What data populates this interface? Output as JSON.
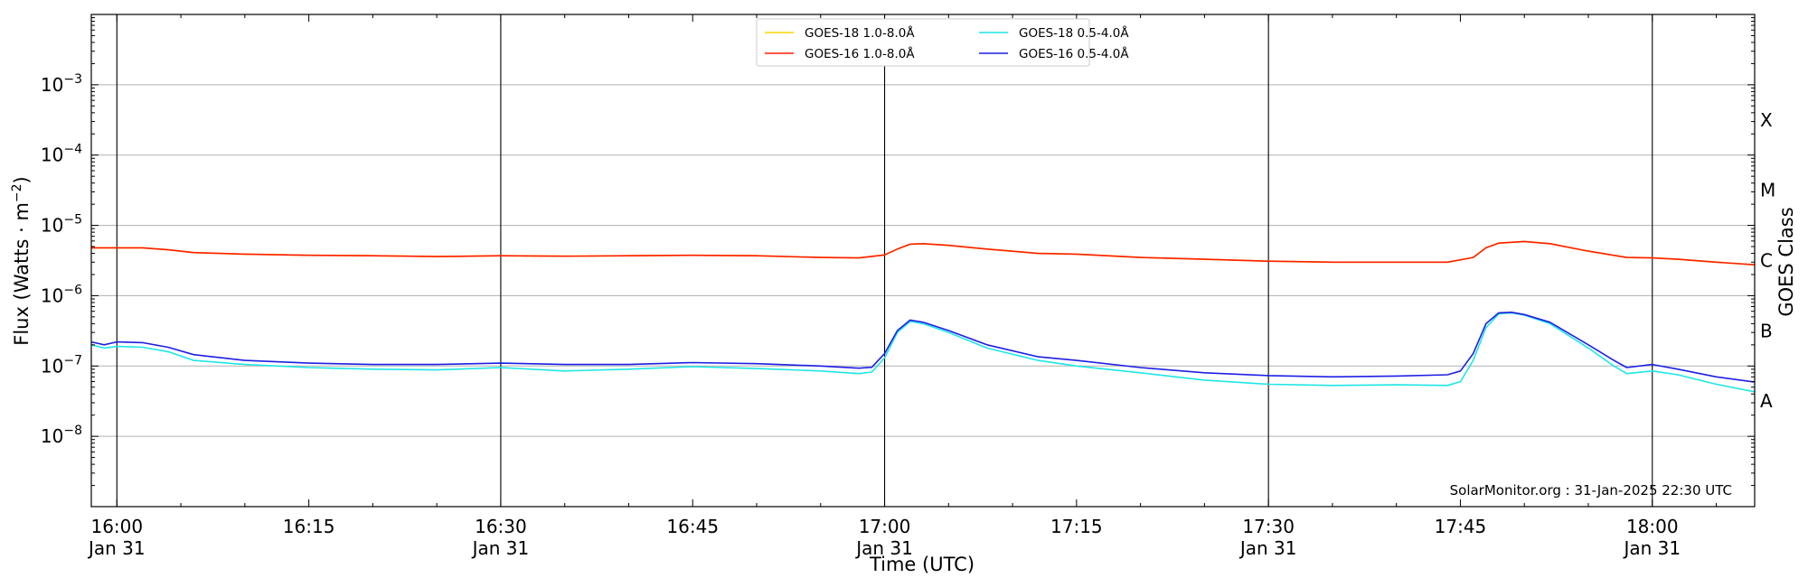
{
  "chart_data": {
    "type": "line",
    "xlabel": "Time (UTC)",
    "ylabel": "Flux (Watts · m",
    "ylabel_sup": "−2",
    "ylabel_close": ")",
    "right_label": "GOES Class",
    "credit": "SolarMonitor.org : 31-Jan-2025 22:30 UTC",
    "y_scale": "log",
    "ylim": [
      1e-09,
      0.01
    ],
    "xlim": [
      "15:58",
      "18:08"
    ],
    "grid": "horizontal",
    "legend_position": "top-center",
    "x_ticks": [
      {
        "t": "16:00",
        "line1": "16:00",
        "line2": "Jan 31",
        "major": true
      },
      {
        "t": "16:15",
        "line1": "16:15",
        "line2": "",
        "major": false
      },
      {
        "t": "16:30",
        "line1": "16:30",
        "line2": "Jan 31",
        "major": true
      },
      {
        "t": "16:45",
        "line1": "16:45",
        "line2": "",
        "major": false
      },
      {
        "t": "17:00",
        "line1": "17:00",
        "line2": "Jan 31",
        "major": true
      },
      {
        "t": "17:15",
        "line1": "17:15",
        "line2": "",
        "major": false
      },
      {
        "t": "17:30",
        "line1": "17:30",
        "line2": "Jan 31",
        "major": true
      },
      {
        "t": "17:45",
        "line1": "17:45",
        "line2": "",
        "major": false
      },
      {
        "t": "18:00",
        "line1": "18:00",
        "line2": "Jan 31",
        "major": true
      }
    ],
    "y_ticks": [
      {
        "exp": -8,
        "base": "10",
        "sup": "−8"
      },
      {
        "exp": -7,
        "base": "10",
        "sup": "−7"
      },
      {
        "exp": -6,
        "base": "10",
        "sup": "−6"
      },
      {
        "exp": -5,
        "base": "10",
        "sup": "−5"
      },
      {
        "exp": -4,
        "base": "10",
        "sup": "−4"
      },
      {
        "exp": -3,
        "base": "10",
        "sup": "−3"
      }
    ],
    "goes_classes": [
      {
        "label": "A",
        "exp": -7.5
      },
      {
        "label": "B",
        "exp": -6.5
      },
      {
        "label": "C",
        "exp": -5.5
      },
      {
        "label": "M",
        "exp": -4.5
      },
      {
        "label": "X",
        "exp": -3.5
      }
    ],
    "series": [
      {
        "name": "GOES-18 1.0-8.0Å",
        "color": "#ffd700",
        "points": [
          [
            "15:58",
            4.8e-06
          ],
          [
            "16:00",
            4.8e-06
          ],
          [
            "16:02",
            4.8e-06
          ],
          [
            "16:04",
            4.5e-06
          ],
          [
            "16:06",
            4.1e-06
          ],
          [
            "16:10",
            3.9e-06
          ],
          [
            "16:15",
            3.75e-06
          ],
          [
            "16:20",
            3.7e-06
          ],
          [
            "16:25",
            3.6e-06
          ],
          [
            "16:30",
            3.7e-06
          ],
          [
            "16:35",
            3.65e-06
          ],
          [
            "16:40",
            3.7e-06
          ],
          [
            "16:45",
            3.75e-06
          ],
          [
            "16:50",
            3.7e-06
          ],
          [
            "16:55",
            3.5e-06
          ],
          [
            "16:58",
            3.45e-06
          ],
          [
            "17:00",
            3.8e-06
          ],
          [
            "17:01",
            4.6e-06
          ],
          [
            "17:02",
            5.4e-06
          ],
          [
            "17:03",
            5.5e-06
          ],
          [
            "17:05",
            5.2e-06
          ],
          [
            "17:08",
            4.6e-06
          ],
          [
            "17:12",
            4e-06
          ],
          [
            "17:15",
            3.9e-06
          ],
          [
            "17:20",
            3.5e-06
          ],
          [
            "17:25",
            3.3e-06
          ],
          [
            "17:30",
            3.1e-06
          ],
          [
            "17:35",
            3e-06
          ],
          [
            "17:40",
            3e-06
          ],
          [
            "17:44",
            3e-06
          ],
          [
            "17:46",
            3.5e-06
          ],
          [
            "17:47",
            4.8e-06
          ],
          [
            "17:48",
            5.6e-06
          ],
          [
            "17:50",
            5.9e-06
          ],
          [
            "17:52",
            5.5e-06
          ],
          [
            "17:55",
            4.3e-06
          ],
          [
            "17:58",
            3.5e-06
          ],
          [
            "18:00",
            3.45e-06
          ],
          [
            "18:02",
            3.3e-06
          ],
          [
            "18:05",
            3e-06
          ],
          [
            "18:08",
            2.75e-06
          ]
        ]
      },
      {
        "name": "GOES-16 1.0-8.0Å",
        "color": "#ff1e00",
        "points": [
          [
            "15:58",
            4.8e-06
          ],
          [
            "16:00",
            4.8e-06
          ],
          [
            "16:02",
            4.8e-06
          ],
          [
            "16:04",
            4.5e-06
          ],
          [
            "16:06",
            4.1e-06
          ],
          [
            "16:10",
            3.9e-06
          ],
          [
            "16:15",
            3.75e-06
          ],
          [
            "16:20",
            3.7e-06
          ],
          [
            "16:25",
            3.6e-06
          ],
          [
            "16:30",
            3.7e-06
          ],
          [
            "16:35",
            3.65e-06
          ],
          [
            "16:40",
            3.7e-06
          ],
          [
            "16:45",
            3.75e-06
          ],
          [
            "16:50",
            3.7e-06
          ],
          [
            "16:55",
            3.5e-06
          ],
          [
            "16:58",
            3.45e-06
          ],
          [
            "17:00",
            3.8e-06
          ],
          [
            "17:01",
            4.6e-06
          ],
          [
            "17:02",
            5.4e-06
          ],
          [
            "17:03",
            5.5e-06
          ],
          [
            "17:05",
            5.2e-06
          ],
          [
            "17:08",
            4.6e-06
          ],
          [
            "17:12",
            4e-06
          ],
          [
            "17:15",
            3.9e-06
          ],
          [
            "17:20",
            3.5e-06
          ],
          [
            "17:25",
            3.3e-06
          ],
          [
            "17:30",
            3.1e-06
          ],
          [
            "17:35",
            3e-06
          ],
          [
            "17:40",
            3e-06
          ],
          [
            "17:44",
            3e-06
          ],
          [
            "17:46",
            3.5e-06
          ],
          [
            "17:47",
            4.8e-06
          ],
          [
            "17:48",
            5.6e-06
          ],
          [
            "17:50",
            5.9e-06
          ],
          [
            "17:52",
            5.5e-06
          ],
          [
            "17:55",
            4.3e-06
          ],
          [
            "17:58",
            3.5e-06
          ],
          [
            "18:00",
            3.45e-06
          ],
          [
            "18:02",
            3.3e-06
          ],
          [
            "18:05",
            3e-06
          ],
          [
            "18:08",
            2.75e-06
          ]
        ]
      },
      {
        "name": "GOES-18 0.5-4.0Å",
        "color": "#1ee6e6",
        "points": [
          [
            "15:58",
            2e-07
          ],
          [
            "15:59",
            1.8e-07
          ],
          [
            "16:00",
            1.9e-07
          ],
          [
            "16:02",
            1.85e-07
          ],
          [
            "16:04",
            1.6e-07
          ],
          [
            "16:06",
            1.2e-07
          ],
          [
            "16:10",
            1.05e-07
          ],
          [
            "16:15",
            9.5e-08
          ],
          [
            "16:20",
            9e-08
          ],
          [
            "16:25",
            8.8e-08
          ],
          [
            "16:30",
            9.5e-08
          ],
          [
            "16:35",
            8.5e-08
          ],
          [
            "16:40",
            9e-08
          ],
          [
            "16:45",
            9.8e-08
          ],
          [
            "16:50",
            9.2e-08
          ],
          [
            "16:55",
            8.5e-08
          ],
          [
            "16:58",
            7.8e-08
          ],
          [
            "16:59",
            8.2e-08
          ],
          [
            "17:00",
            1.3e-07
          ],
          [
            "17:01",
            3e-07
          ],
          [
            "17:02",
            4.3e-07
          ],
          [
            "17:03",
            4e-07
          ],
          [
            "17:05",
            3e-07
          ],
          [
            "17:08",
            1.8e-07
          ],
          [
            "17:12",
            1.2e-07
          ],
          [
            "17:15",
            1e-07
          ],
          [
            "17:20",
            8e-08
          ],
          [
            "17:25",
            6.3e-08
          ],
          [
            "17:30",
            5.5e-08
          ],
          [
            "17:35",
            5.3e-08
          ],
          [
            "17:40",
            5.4e-08
          ],
          [
            "17:44",
            5.3e-08
          ],
          [
            "17:45",
            6e-08
          ],
          [
            "17:46",
            1.2e-07
          ],
          [
            "17:47",
            3.5e-07
          ],
          [
            "17:48",
            5.5e-07
          ],
          [
            "17:49",
            5.7e-07
          ],
          [
            "17:50",
            5.3e-07
          ],
          [
            "17:52",
            4e-07
          ],
          [
            "17:55",
            1.8e-07
          ],
          [
            "17:57",
            1e-07
          ],
          [
            "17:58",
            7.8e-08
          ],
          [
            "18:00",
            8.5e-08
          ],
          [
            "18:02",
            7.5e-08
          ],
          [
            "18:05",
            5.5e-08
          ],
          [
            "18:08",
            4.3e-08
          ]
        ]
      },
      {
        "name": "GOES-16 0.5-4.0Å",
        "color": "#1e1ee6",
        "points": [
          [
            "15:58",
            2.2e-07
          ],
          [
            "15:59",
            2e-07
          ],
          [
            "16:00",
            2.2e-07
          ],
          [
            "16:02",
            2.15e-07
          ],
          [
            "16:04",
            1.85e-07
          ],
          [
            "16:06",
            1.45e-07
          ],
          [
            "16:10",
            1.2e-07
          ],
          [
            "16:15",
            1.1e-07
          ],
          [
            "16:20",
            1.05e-07
          ],
          [
            "16:25",
            1.05e-07
          ],
          [
            "16:30",
            1.1e-07
          ],
          [
            "16:35",
            1.05e-07
          ],
          [
            "16:40",
            1.05e-07
          ],
          [
            "16:45",
            1.12e-07
          ],
          [
            "16:50",
            1.08e-07
          ],
          [
            "16:55",
            1e-07
          ],
          [
            "16:58",
            9.3e-08
          ],
          [
            "16:59",
            9.6e-08
          ],
          [
            "17:00",
            1.5e-07
          ],
          [
            "17:01",
            3.2e-07
          ],
          [
            "17:02",
            4.5e-07
          ],
          [
            "17:03",
            4.2e-07
          ],
          [
            "17:05",
            3.2e-07
          ],
          [
            "17:08",
            2e-07
          ],
          [
            "17:12",
            1.35e-07
          ],
          [
            "17:15",
            1.2e-07
          ],
          [
            "17:20",
            9.5e-08
          ],
          [
            "17:25",
            8e-08
          ],
          [
            "17:30",
            7.3e-08
          ],
          [
            "17:35",
            7e-08
          ],
          [
            "17:40",
            7.2e-08
          ],
          [
            "17:44",
            7.5e-08
          ],
          [
            "17:45",
            8.5e-08
          ],
          [
            "17:46",
            1.5e-07
          ],
          [
            "17:47",
            4e-07
          ],
          [
            "17:48",
            5.7e-07
          ],
          [
            "17:49",
            5.8e-07
          ],
          [
            "17:50",
            5.4e-07
          ],
          [
            "17:52",
            4.2e-07
          ],
          [
            "17:55",
            2e-07
          ],
          [
            "17:57",
            1.2e-07
          ],
          [
            "17:58",
            9.5e-08
          ],
          [
            "18:00",
            1.05e-07
          ],
          [
            "18:02",
            9e-08
          ],
          [
            "18:05",
            7e-08
          ],
          [
            "18:08",
            5.9e-08
          ]
        ]
      }
    ]
  }
}
